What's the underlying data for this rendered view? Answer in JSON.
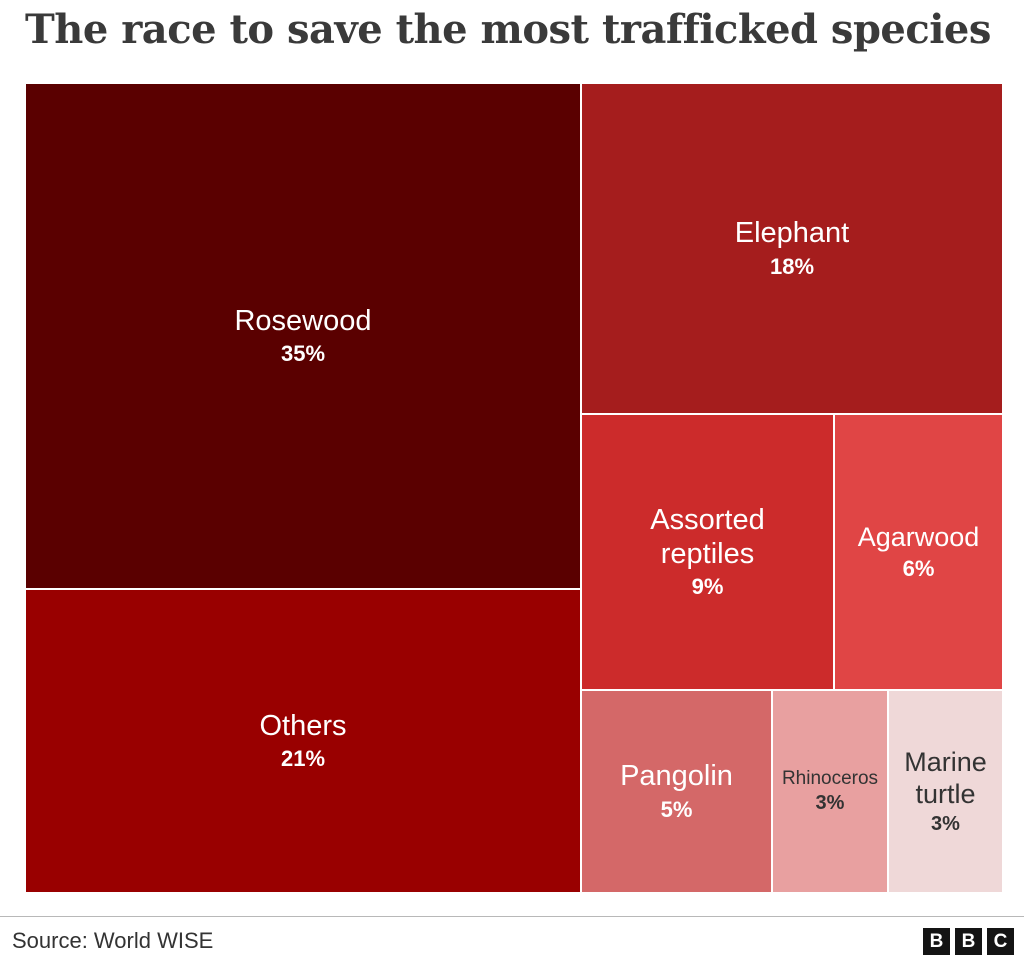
{
  "title": "The race to save the most trafficked species",
  "chart_data": {
    "type": "treemap",
    "title": "The race to save the most trafficked species",
    "unit": "%",
    "categories": [
      "Rosewood",
      "Others",
      "Elephant",
      "Assorted reptiles",
      "Agarwood",
      "Pangolin",
      "Rhinoceros",
      "Marine turtle"
    ],
    "values": [
      35,
      21,
      18,
      9,
      6,
      5,
      3,
      3
    ],
    "items": [
      {
        "label": "Rosewood",
        "value": 35,
        "value_label": "35%",
        "color": "#5a0000",
        "text_color": "#ffffff"
      },
      {
        "label": "Others",
        "value": 21,
        "value_label": "21%",
        "color": "#990000",
        "text_color": "#ffffff"
      },
      {
        "label": "Elephant",
        "value": 18,
        "value_label": "18%",
        "color": "#a51d1d",
        "text_color": "#ffffff"
      },
      {
        "label": "Assorted reptiles",
        "value": 9,
        "value_label": "9%",
        "color": "#cc2b2b",
        "text_color": "#ffffff"
      },
      {
        "label": "Agarwood",
        "value": 6,
        "value_label": "6%",
        "color": "#e04545",
        "text_color": "#ffffff"
      },
      {
        "label": "Pangolin",
        "value": 5,
        "value_label": "5%",
        "color": "#d46868",
        "text_color": "#ffffff"
      },
      {
        "label": "Rhinoceros",
        "value": 3,
        "value_label": "3%",
        "color": "#e8a0a0",
        "text_color": "#333333"
      },
      {
        "label": "Marine turtle",
        "value": 3,
        "value_label": "3%",
        "color": "#efd8d8",
        "text_color": "#333333"
      }
    ]
  },
  "footer": {
    "source": "Source: World WISE",
    "logo_letters": [
      "B",
      "B",
      "C"
    ]
  }
}
